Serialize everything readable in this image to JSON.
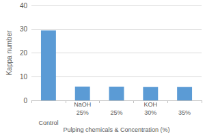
{
  "chart_data": {
    "type": "bar",
    "y_label": "Kappa number",
    "x_label": "Pulping chemicals & Concentration (%)",
    "categories": [
      null,
      "25%",
      "25%",
      "30%",
      "35%"
    ],
    "category_groups": [
      {
        "label": "Control",
        "categories": 1
      },
      {
        "label": "NaOH",
        "categories": 1
      },
      {
        "label": "KOH",
        "categories": 3
      }
    ],
    "values": [
      29.5,
      5.8,
      5.8,
      5.7,
      5.7
    ],
    "color": "#5b9bd5",
    "ylim": [
      0,
      40
    ],
    "yticks": [
      0,
      10,
      20,
      30,
      40
    ],
    "grid": true
  }
}
